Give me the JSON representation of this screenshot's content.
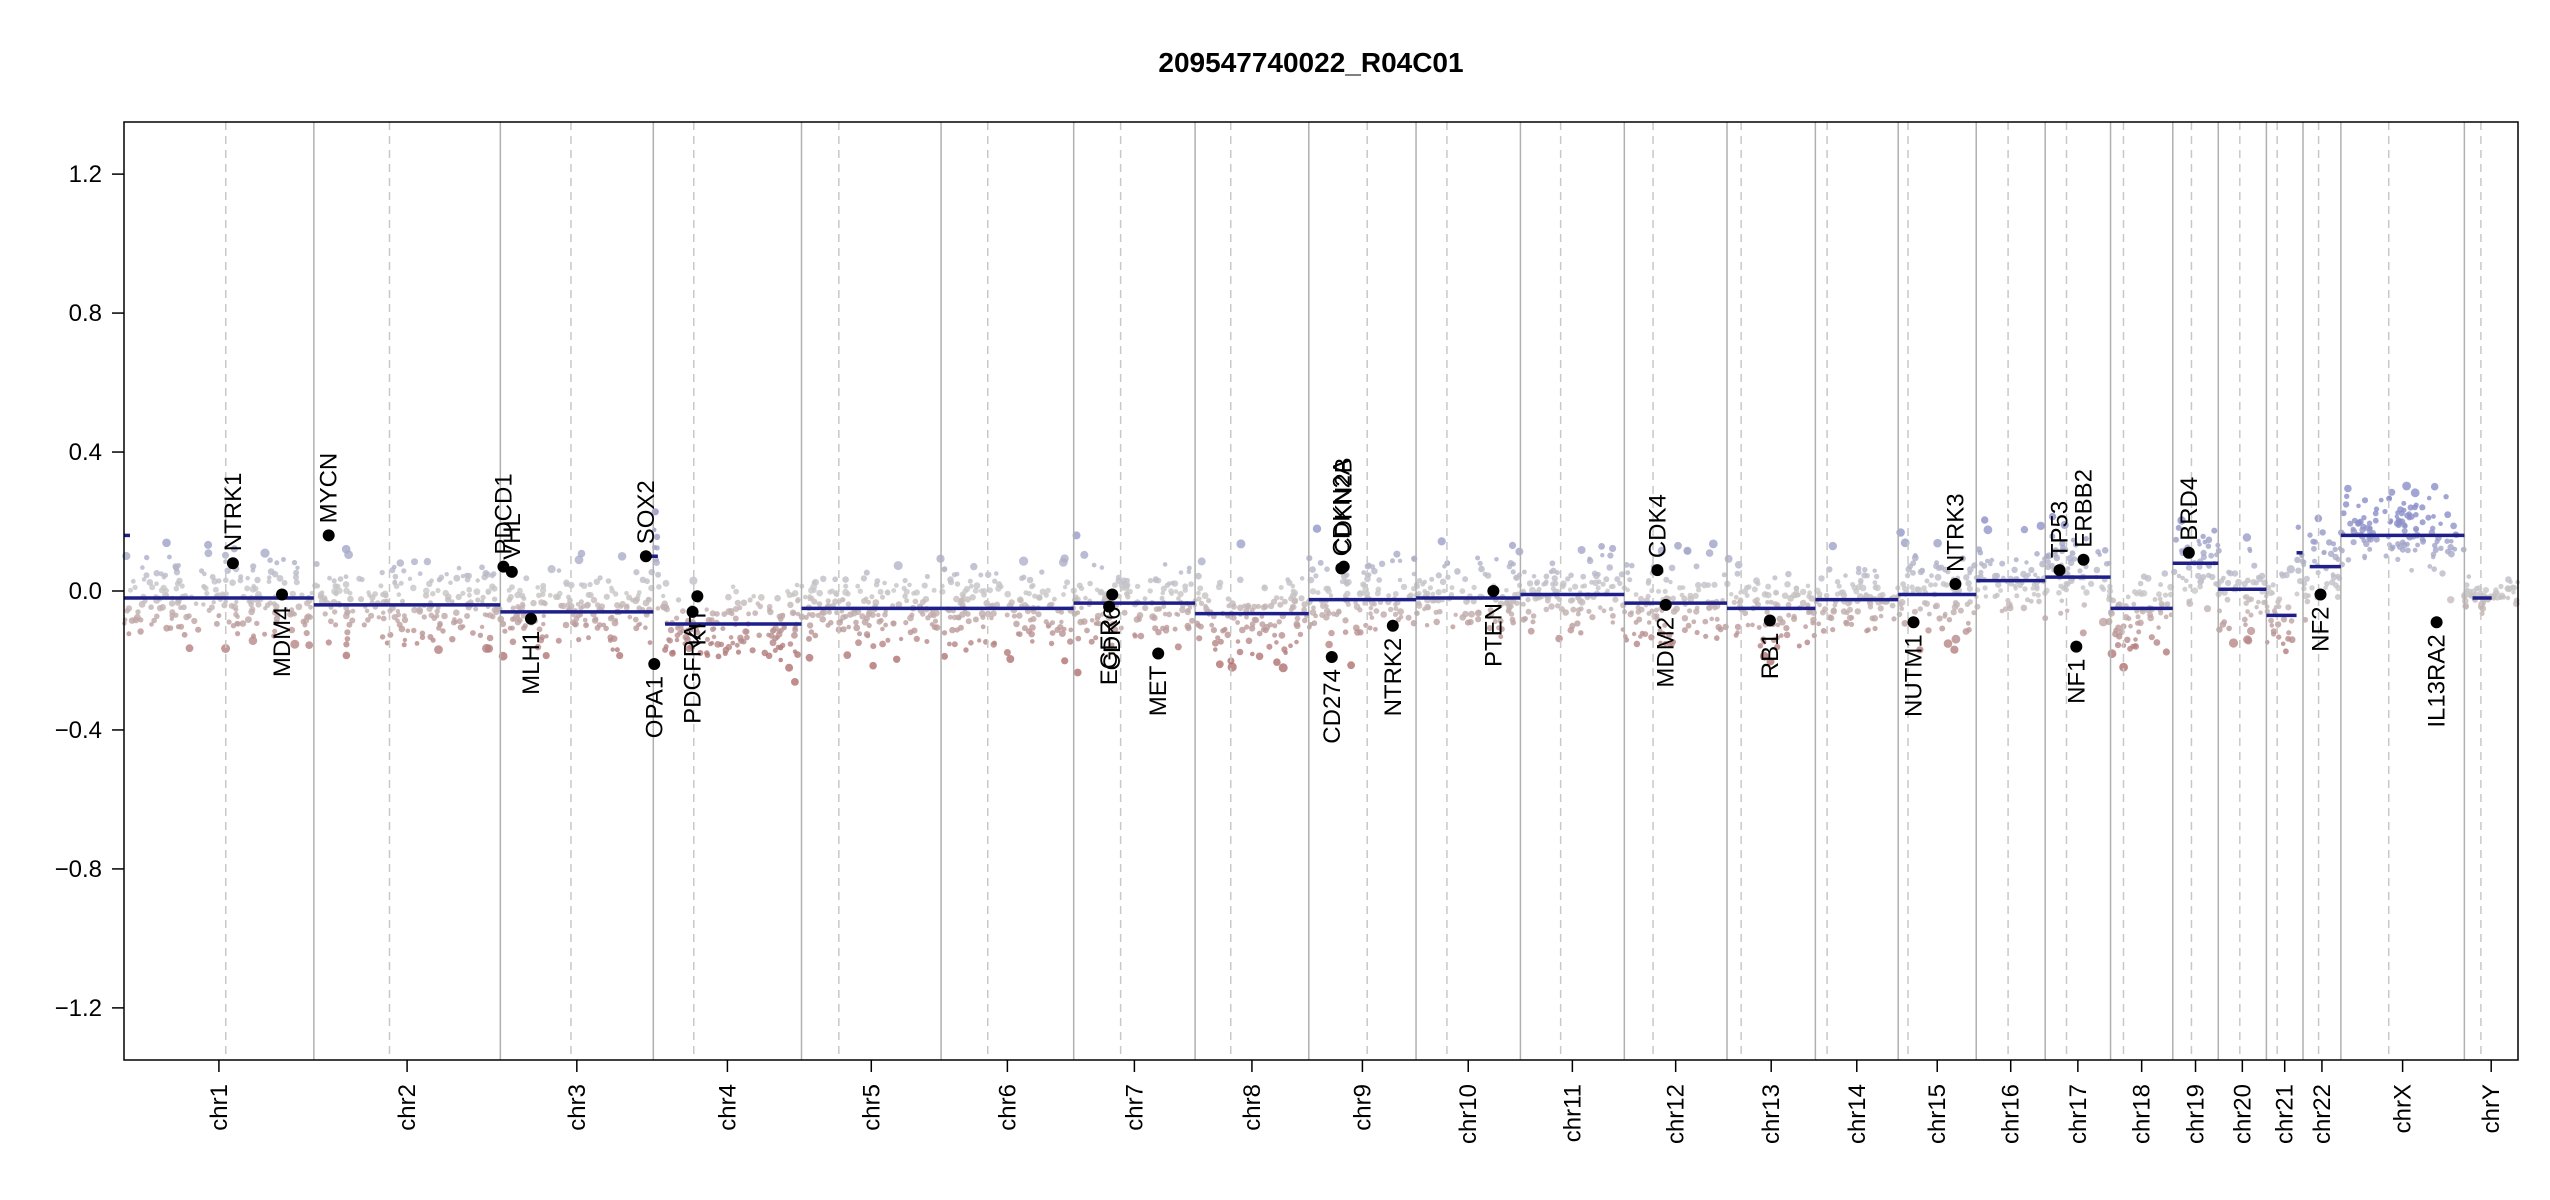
{
  "chart_data": {
    "type": "scatter",
    "title": "209547740022_R04C01",
    "xlabel": "",
    "ylabel": "",
    "ylim": [
      -1.35,
      1.35
    ],
    "y_ticks": [
      1.2,
      0.8,
      0.4,
      0.0,
      -0.4,
      -0.8,
      -1.2
    ],
    "y_tick_labels": [
      "1.2",
      "0.8",
      "0.4",
      "0.0",
      "−0.4",
      "−0.8",
      "−1.2"
    ],
    "grid": false,
    "colors": {
      "gain": "#8b8fc8",
      "neutral": "#c8c8c8",
      "loss": "#b07070",
      "segment": "#1f1f8a",
      "gene_point": "#000000",
      "chr_boundary": "#b0b0b0",
      "centromere": "#c8c8c8"
    },
    "chromosomes": [
      {
        "name": "chr1",
        "start": 0.0,
        "end": 0.0793,
        "centromere": 0.0425,
        "noise": 0.06
      },
      {
        "name": "chr2",
        "start": 0.0793,
        "end": 0.1572,
        "centromere": 0.1109,
        "noise": 0.06
      },
      {
        "name": "chr3",
        "start": 0.1572,
        "end": 0.2211,
        "centromere": 0.1867,
        "noise": 0.06
      },
      {
        "name": "chr4",
        "start": 0.2211,
        "end": 0.283,
        "centromere": 0.238,
        "noise": 0.06
      },
      {
        "name": "chr5",
        "start": 0.283,
        "end": 0.3413,
        "centromere": 0.2986,
        "noise": 0.06
      },
      {
        "name": "chr6",
        "start": 0.3413,
        "end": 0.3967,
        "centromere": 0.3608,
        "noise": 0.06
      },
      {
        "name": "chr7",
        "start": 0.3967,
        "end": 0.4474,
        "centromere": 0.4163,
        "noise": 0.06
      },
      {
        "name": "chr8",
        "start": 0.4474,
        "end": 0.4949,
        "centromere": 0.4623,
        "noise": 0.06
      },
      {
        "name": "chr9",
        "start": 0.4949,
        "end": 0.5397,
        "centromere": 0.5193,
        "noise": 0.06
      },
      {
        "name": "chr10",
        "start": 0.5397,
        "end": 0.5833,
        "centromere": 0.5526,
        "noise": 0.06
      },
      {
        "name": "chr11",
        "start": 0.5833,
        "end": 0.6267,
        "centromere": 0.6001,
        "noise": 0.06
      },
      {
        "name": "chr12",
        "start": 0.6267,
        "end": 0.6696,
        "centromere": 0.6387,
        "noise": 0.06
      },
      {
        "name": "chr13",
        "start": 0.6696,
        "end": 0.7065,
        "centromere": 0.6755,
        "noise": 0.06
      },
      {
        "name": "chr14",
        "start": 0.7065,
        "end": 0.7411,
        "centromere": 0.7114,
        "noise": 0.06
      },
      {
        "name": "chr15",
        "start": 0.7411,
        "end": 0.7737,
        "centromere": 0.7452,
        "noise": 0.06
      },
      {
        "name": "chr16",
        "start": 0.7737,
        "end": 0.8025,
        "centromere": 0.787,
        "noise": 0.06
      },
      {
        "name": "chr17",
        "start": 0.8025,
        "end": 0.8298,
        "centromere": 0.8114,
        "noise": 0.06
      },
      {
        "name": "chr18",
        "start": 0.8298,
        "end": 0.8558,
        "centromere": 0.8352,
        "noise": 0.06
      },
      {
        "name": "chr19",
        "start": 0.8558,
        "end": 0.8748,
        "centromere": 0.8636,
        "noise": 0.06
      },
      {
        "name": "chr20",
        "start": 0.8748,
        "end": 0.8949,
        "centromere": 0.8838,
        "noise": 0.06
      },
      {
        "name": "chr21",
        "start": 0.8949,
        "end": 0.9102,
        "centromere": 0.8994,
        "noise": 0.06
      },
      {
        "name": "chr22",
        "start": 0.9102,
        "end": 0.926,
        "centromere": 0.9167,
        "noise": 0.06
      },
      {
        "name": "chrX",
        "start": 0.926,
        "end": 0.9776,
        "centromere": 0.946,
        "noise": 0.06
      },
      {
        "name": "chrY",
        "start": 0.9776,
        "end": 1.0,
        "centromere": 0.9845,
        "noise": 0.02
      }
    ],
    "segments": [
      {
        "x0": 0.0,
        "x1": 0.0025,
        "y": 0.16
      },
      {
        "x0": 0.0,
        "x1": 0.0793,
        "y": -0.02
      },
      {
        "x0": 0.0793,
        "x1": 0.1572,
        "y": -0.04
      },
      {
        "x0": 0.1572,
        "x1": 0.2211,
        "y": -0.06
      },
      {
        "x0": 0.218,
        "x1": 0.223,
        "y": 0.1
      },
      {
        "x0": 0.226,
        "x1": 0.283,
        "y": -0.095
      },
      {
        "x0": 0.283,
        "x1": 0.3413,
        "y": -0.05
      },
      {
        "x0": 0.3413,
        "x1": 0.3967,
        "y": -0.05
      },
      {
        "x0": 0.3967,
        "x1": 0.4474,
        "y": -0.035
      },
      {
        "x0": 0.4474,
        "x1": 0.4949,
        "y": -0.065
      },
      {
        "x0": 0.4949,
        "x1": 0.5397,
        "y": -0.025
      },
      {
        "x0": 0.5397,
        "x1": 0.5833,
        "y": -0.02
      },
      {
        "x0": 0.5833,
        "x1": 0.6267,
        "y": -0.01
      },
      {
        "x0": 0.6267,
        "x1": 0.6696,
        "y": -0.035
      },
      {
        "x0": 0.6696,
        "x1": 0.7065,
        "y": -0.05
      },
      {
        "x0": 0.7065,
        "x1": 0.7411,
        "y": -0.025
      },
      {
        "x0": 0.7411,
        "x1": 0.7737,
        "y": -0.01
      },
      {
        "x0": 0.7737,
        "x1": 0.8025,
        "y": 0.03
      },
      {
        "x0": 0.8025,
        "x1": 0.8298,
        "y": 0.04
      },
      {
        "x0": 0.8298,
        "x1": 0.8558,
        "y": -0.05
      },
      {
        "x0": 0.8558,
        "x1": 0.8748,
        "y": 0.08
      },
      {
        "x0": 0.8748,
        "x1": 0.8949,
        "y": 0.005
      },
      {
        "x0": 0.8949,
        "x1": 0.9075,
        "y": -0.07
      },
      {
        "x0": 0.9075,
        "x1": 0.91,
        "y": 0.11
      },
      {
        "x0": 0.913,
        "x1": 0.926,
        "y": 0.07
      },
      {
        "x0": 0.926,
        "x1": 0.9776,
        "y": 0.16
      },
      {
        "x0": 0.981,
        "x1": 0.989,
        "y": -0.02
      }
    ],
    "genes": [
      {
        "name": "NTRK1",
        "x": 0.0455,
        "y": 0.08,
        "label_side": "above"
      },
      {
        "name": "MDM4",
        "x": 0.066,
        "y": -0.01,
        "label_side": "below"
      },
      {
        "name": "MYCN",
        "x": 0.0855,
        "y": 0.16,
        "label_side": "above"
      },
      {
        "name": "PDCD1",
        "x": 0.1585,
        "y": 0.07,
        "label_side": "above"
      },
      {
        "name": "VHL",
        "x": 0.162,
        "y": 0.055,
        "label_side": "above"
      },
      {
        "name": "MLH1",
        "x": 0.17,
        "y": -0.08,
        "label_side": "below"
      },
      {
        "name": "SOX2",
        "x": 0.218,
        "y": 0.1,
        "label_side": "above"
      },
      {
        "name": "OPA1",
        "x": 0.2215,
        "y": -0.21,
        "label_side": "below"
      },
      {
        "name": "PDGFRA",
        "x": 0.2375,
        "y": -0.06,
        "label_side": "below"
      },
      {
        "name": "KIT",
        "x": 0.2395,
        "y": -0.015,
        "label_side": "below"
      },
      {
        "name": "EGFR",
        "x": 0.4115,
        "y": -0.045,
        "label_side": "below"
      },
      {
        "name": "CDK6",
        "x": 0.4128,
        "y": -0.01,
        "label_side": "below"
      },
      {
        "name": "MET",
        "x": 0.432,
        "y": -0.18,
        "label_side": "below"
      },
      {
        "name": "CD274",
        "x": 0.5045,
        "y": -0.19,
        "label_side": "below"
      },
      {
        "name": "CDKN2A",
        "x": 0.5085,
        "y": 0.065,
        "label_side": "above"
      },
      {
        "name": "CDKN2B",
        "x": 0.5095,
        "y": 0.07,
        "label_side": "above"
      },
      {
        "name": "NTRK2",
        "x": 0.53,
        "y": -0.1,
        "label_side": "below"
      },
      {
        "name": "PTEN",
        "x": 0.572,
        "y": 0.0,
        "label_side": "below"
      },
      {
        "name": "CDK4",
        "x": 0.6405,
        "y": 0.06,
        "label_side": "above"
      },
      {
        "name": "MDM2",
        "x": 0.644,
        "y": -0.04,
        "label_side": "below"
      },
      {
        "name": "RB1",
        "x": 0.6875,
        "y": -0.085,
        "label_side": "below"
      },
      {
        "name": "NUTM1",
        "x": 0.7475,
        "y": -0.09,
        "label_side": "below"
      },
      {
        "name": "NTRK3",
        "x": 0.765,
        "y": 0.02,
        "label_side": "above"
      },
      {
        "name": "TP53",
        "x": 0.8085,
        "y": 0.06,
        "label_side": "above"
      },
      {
        "name": "ERBB2",
        "x": 0.8185,
        "y": 0.09,
        "label_side": "above"
      },
      {
        "name": "NF1",
        "x": 0.8155,
        "y": -0.16,
        "label_side": "below"
      },
      {
        "name": "BRD4",
        "x": 0.8625,
        "y": 0.11,
        "label_side": "above"
      },
      {
        "name": "NF2",
        "x": 0.9175,
        "y": -0.01,
        "label_side": "below"
      },
      {
        "name": "IL13RA2",
        "x": 0.966,
        "y": -0.09,
        "label_side": "below"
      }
    ]
  }
}
